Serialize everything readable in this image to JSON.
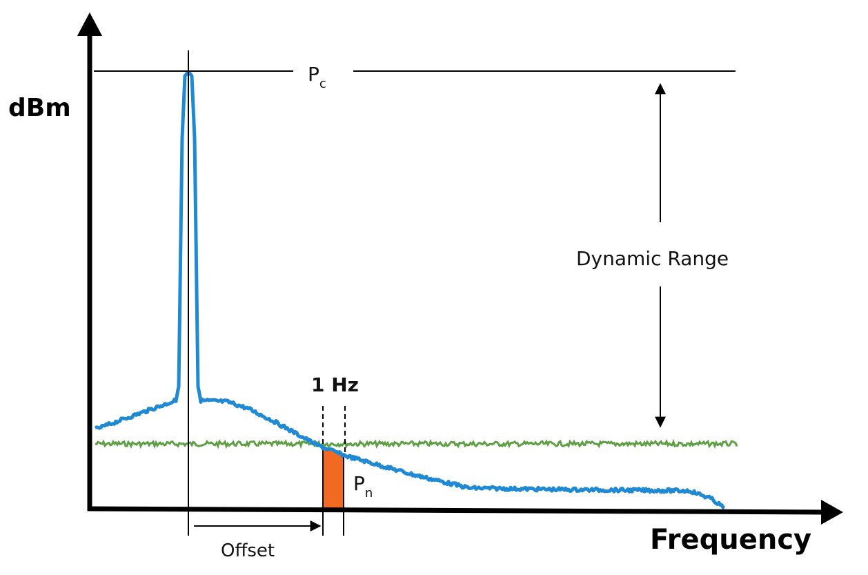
{
  "labels": {
    "y_axis": "dBm",
    "x_axis": "Frequency",
    "carrier_power": "P",
    "carrier_power_sub": "c",
    "noise_power": "P",
    "noise_power_sub": "n",
    "bandwidth": "1 Hz",
    "offset": "Offset",
    "dynamic_range": "Dynamic Range"
  },
  "colors": {
    "signal": "#1f8ad3",
    "noise_floor": "#5da043",
    "noise_band": "#f26a21",
    "axis": "#000000"
  }
}
